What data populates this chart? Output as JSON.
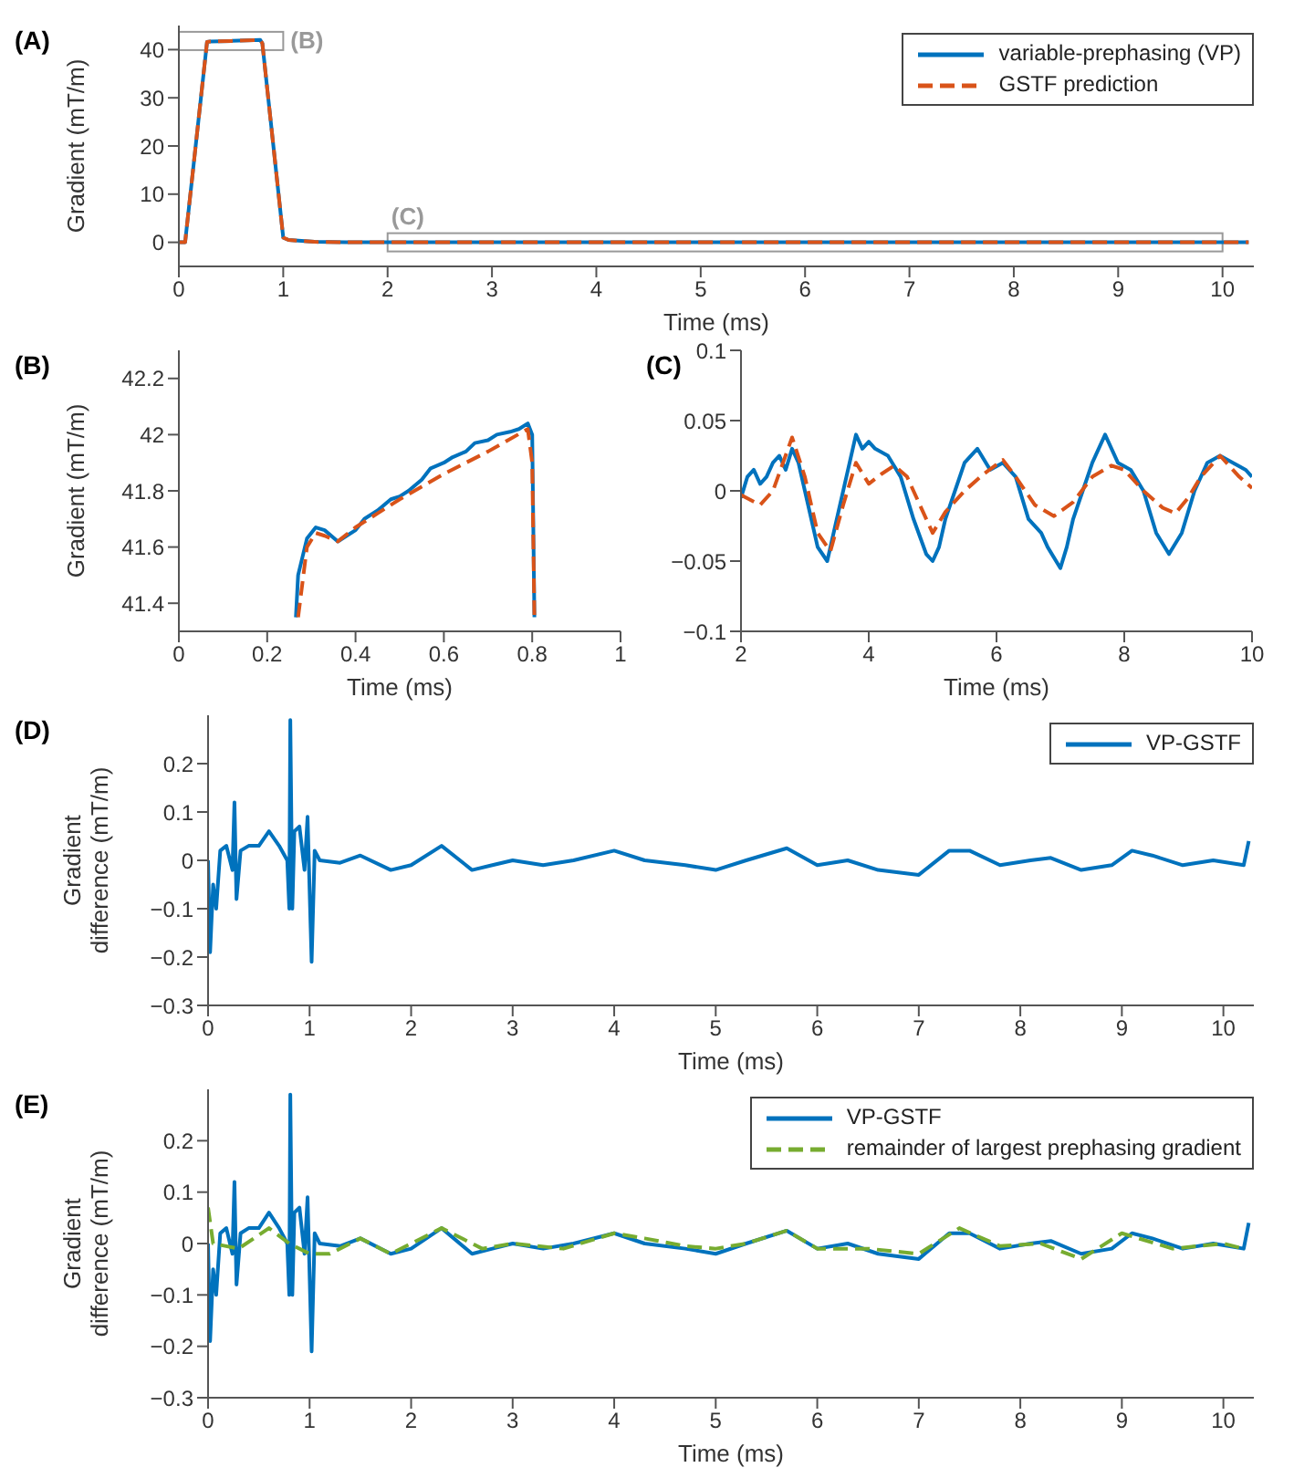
{
  "chart_data": [
    {
      "type": "line",
      "title": "(A)",
      "xlabel": "Time (ms)",
      "ylabel": "Gradient (mT/m)",
      "xlim": [
        0,
        10.3
      ],
      "xticks": [
        0,
        1,
        2,
        3,
        4,
        5,
        6,
        7,
        8,
        9,
        10
      ],
      "ylim": [
        -5,
        45
      ],
      "yticks": [
        0,
        10,
        20,
        30,
        40
      ],
      "legend": "top right",
      "annotations": [
        "(B)",
        "(C)"
      ],
      "series": [
        {
          "name": "variable-prephasing (VP)",
          "color": "#0072bd",
          "line_style": "solid",
          "x": [
            0,
            0.06,
            0.27,
            0.3,
            0.5,
            0.78,
            0.8,
            1.0,
            1.05,
            1.3,
            1.6,
            10.25
          ],
          "values": [
            0,
            0,
            41.6,
            41.7,
            41.8,
            42,
            41.3,
            1,
            0.5,
            0.1,
            0,
            0
          ]
        },
        {
          "name": "GSTF prediction",
          "color": "#d95319",
          "line_style": "dashed",
          "x": [
            0,
            0.06,
            0.27,
            0.3,
            0.5,
            0.78,
            0.8,
            1.0,
            1.05,
            1.3,
            1.6,
            10.25
          ],
          "values": [
            0,
            0,
            41.6,
            41.7,
            41.8,
            42,
            41.3,
            1,
            0.5,
            0.1,
            0,
            0
          ]
        }
      ]
    },
    {
      "type": "line",
      "title": "(B)",
      "xlabel": "Time (ms)",
      "ylabel": "Gradient (mT/m)",
      "xlim": [
        0,
        1
      ],
      "xticks": [
        0,
        0.2,
        0.4,
        0.6,
        0.8,
        1
      ],
      "ylim": [
        41.3,
        42.3
      ],
      "yticks": [
        41.4,
        41.6,
        41.8,
        42,
        42.2
      ],
      "series": [
        {
          "color": "#0072bd",
          "line_style": "solid",
          "x": [
            0.265,
            0.27,
            0.29,
            0.31,
            0.33,
            0.36,
            0.38,
            0.4,
            0.42,
            0.45,
            0.48,
            0.5,
            0.52,
            0.55,
            0.57,
            0.6,
            0.62,
            0.65,
            0.67,
            0.7,
            0.72,
            0.75,
            0.77,
            0.79,
            0.8,
            0.805
          ],
          "values": [
            41.35,
            41.5,
            41.63,
            41.67,
            41.66,
            41.62,
            41.64,
            41.66,
            41.7,
            41.73,
            41.77,
            41.78,
            41.8,
            41.84,
            41.88,
            41.9,
            41.92,
            41.94,
            41.97,
            41.98,
            42.0,
            42.01,
            42.02,
            42.04,
            42.0,
            41.35
          ]
        },
        {
          "color": "#d95319",
          "line_style": "dashed",
          "x": [
            0.27,
            0.29,
            0.31,
            0.33,
            0.36,
            0.4,
            0.45,
            0.5,
            0.6,
            0.7,
            0.79,
            0.8,
            0.805
          ],
          "values": [
            41.35,
            41.6,
            41.65,
            41.64,
            41.62,
            41.67,
            41.72,
            41.77,
            41.86,
            41.94,
            42.02,
            41.9,
            41.35
          ]
        }
      ]
    },
    {
      "type": "line",
      "title": "(C)",
      "xlabel": "Time (ms)",
      "xlim": [
        2,
        10
      ],
      "xticks": [
        2,
        4,
        6,
        8,
        10
      ],
      "ylim": [
        -0.1,
        0.1
      ],
      "yticks": [
        -0.1,
        -0.05,
        0,
        0.05,
        0.1
      ],
      "series": [
        {
          "color": "#0072bd",
          "line_style": "solid",
          "x": [
            2.0,
            2.1,
            2.2,
            2.3,
            2.4,
            2.5,
            2.6,
            2.7,
            2.8,
            2.9,
            3.0,
            3.1,
            3.2,
            3.35,
            3.5,
            3.6,
            3.7,
            3.8,
            3.9,
            4.0,
            4.1,
            4.3,
            4.5,
            4.7,
            4.9,
            5.0,
            5.1,
            5.2,
            5.35,
            5.5,
            5.7,
            5.9,
            6.1,
            6.3,
            6.5,
            6.7,
            6.8,
            7.0,
            7.1,
            7.2,
            7.35,
            7.5,
            7.7,
            7.9,
            8.1,
            8.3,
            8.5,
            8.7,
            8.9,
            9.1,
            9.3,
            9.5,
            9.7,
            9.9,
            10.0
          ],
          "values": [
            -0.005,
            0.01,
            0.015,
            0.005,
            0.01,
            0.02,
            0.025,
            0.015,
            0.03,
            0.02,
            0.0,
            -0.02,
            -0.04,
            -0.05,
            -0.02,
            0.0,
            0.02,
            0.04,
            0.03,
            0.035,
            0.03,
            0.025,
            0.01,
            -0.02,
            -0.045,
            -0.05,
            -0.04,
            -0.02,
            0.0,
            0.02,
            0.03,
            0.015,
            0.02,
            0.01,
            -0.02,
            -0.03,
            -0.04,
            -0.055,
            -0.04,
            -0.02,
            0.0,
            0.02,
            0.04,
            0.02,
            0.015,
            0.0,
            -0.03,
            -0.045,
            -0.03,
            0.0,
            0.02,
            0.025,
            0.02,
            0.015,
            0.01
          ]
        },
        {
          "color": "#d95319",
          "line_style": "dashed",
          "x": [
            2.0,
            2.3,
            2.5,
            2.8,
            3.0,
            3.2,
            3.4,
            3.6,
            3.8,
            4.0,
            4.2,
            4.4,
            4.6,
            4.8,
            5.0,
            5.2,
            5.5,
            5.8,
            6.1,
            6.3,
            6.6,
            6.9,
            7.2,
            7.5,
            7.8,
            8.0,
            8.3,
            8.6,
            8.8,
            9.0,
            9.2,
            9.5,
            9.8,
            10.0
          ],
          "values": [
            -0.003,
            -0.01,
            0.0,
            0.038,
            0.01,
            -0.03,
            -0.043,
            -0.01,
            0.02,
            0.005,
            0.012,
            0.018,
            0.01,
            -0.01,
            -0.03,
            -0.015,
            0.0,
            0.012,
            0.022,
            0.01,
            -0.01,
            -0.018,
            -0.008,
            0.01,
            0.018,
            0.015,
            0.0,
            -0.012,
            -0.016,
            -0.005,
            0.01,
            0.025,
            0.01,
            0.002
          ]
        }
      ]
    },
    {
      "type": "line",
      "title": "(D)",
      "xlabel": "Time (ms)",
      "ylabel": "Gradient difference (mT/m)",
      "xlim": [
        0,
        10.3
      ],
      "xticks": [
        0,
        1,
        2,
        3,
        4,
        5,
        6,
        7,
        8,
        9,
        10
      ],
      "ylim": [
        -0.3,
        0.3
      ],
      "yticks": [
        -0.3,
        -0.2,
        -0.1,
        0,
        0.1,
        0.2
      ],
      "legend": "top right",
      "series": [
        {
          "name": "VP-GSTF",
          "color": "#0072bd",
          "line_style": "solid",
          "x": [
            0,
            0.02,
            0.05,
            0.08,
            0.12,
            0.18,
            0.24,
            0.26,
            0.28,
            0.32,
            0.4,
            0.5,
            0.6,
            0.7,
            0.78,
            0.8,
            0.81,
            0.83,
            0.85,
            0.9,
            0.95,
            0.98,
            1.02,
            1.05,
            1.1,
            1.3,
            1.5,
            1.8,
            2.0,
            2.3,
            2.6,
            2.8,
            3.0,
            3.3,
            3.6,
            4.0,
            4.3,
            4.7,
            5.0,
            5.3,
            5.7,
            6.0,
            6.3,
            6.6,
            7.0,
            7.3,
            7.5,
            7.8,
            8.1,
            8.3,
            8.6,
            8.9,
            9.1,
            9.3,
            9.6,
            9.9,
            10.2,
            10.25
          ],
          "values": [
            0,
            -0.19,
            -0.05,
            -0.1,
            0.02,
            0.03,
            -0.02,
            0.12,
            -0.08,
            0.02,
            0.03,
            0.03,
            0.06,
            0.03,
            0.0,
            -0.1,
            0.29,
            -0.1,
            0.06,
            0.07,
            -0.02,
            0.09,
            -0.21,
            0.02,
            0.0,
            -0.005,
            0.01,
            -0.02,
            -0.01,
            0.03,
            -0.02,
            -0.01,
            0.0,
            -0.01,
            0.0,
            0.02,
            0.0,
            -0.01,
            -0.02,
            0.0,
            0.025,
            -0.01,
            0.0,
            -0.02,
            -0.03,
            0.02,
            0.02,
            -0.01,
            0.0,
            0.005,
            -0.02,
            -0.01,
            0.02,
            0.01,
            -0.01,
            0.0,
            -0.01,
            0.04
          ]
        }
      ]
    },
    {
      "type": "line",
      "title": "(E)",
      "xlabel": "Time (ms)",
      "ylabel": "Gradient difference (mT/m)",
      "xlim": [
        0,
        10.3
      ],
      "xticks": [
        0,
        1,
        2,
        3,
        4,
        5,
        6,
        7,
        8,
        9,
        10
      ],
      "ylim": [
        -0.3,
        0.3
      ],
      "yticks": [
        -0.3,
        -0.2,
        -0.1,
        0,
        0.1,
        0.2
      ],
      "legend": "top right",
      "series": [
        {
          "name": "VP-GSTF",
          "color": "#0072bd",
          "line_style": "solid",
          "x": [
            0,
            0.02,
            0.05,
            0.08,
            0.12,
            0.18,
            0.24,
            0.26,
            0.28,
            0.32,
            0.4,
            0.5,
            0.6,
            0.7,
            0.78,
            0.8,
            0.81,
            0.83,
            0.85,
            0.9,
            0.95,
            0.98,
            1.02,
            1.05,
            1.1,
            1.3,
            1.5,
            1.8,
            2.0,
            2.3,
            2.6,
            2.8,
            3.0,
            3.3,
            3.6,
            4.0,
            4.3,
            4.7,
            5.0,
            5.3,
            5.7,
            6.0,
            6.3,
            6.6,
            7.0,
            7.3,
            7.5,
            7.8,
            8.1,
            8.3,
            8.6,
            8.9,
            9.1,
            9.3,
            9.6,
            9.9,
            10.2,
            10.25
          ],
          "values": [
            0,
            -0.19,
            -0.05,
            -0.1,
            0.02,
            0.03,
            -0.02,
            0.12,
            -0.08,
            0.02,
            0.03,
            0.03,
            0.06,
            0.03,
            0.0,
            -0.1,
            0.29,
            -0.1,
            0.06,
            0.07,
            -0.02,
            0.09,
            -0.21,
            0.02,
            0.0,
            -0.005,
            0.01,
            -0.02,
            -0.01,
            0.03,
            -0.02,
            -0.01,
            0.0,
            -0.01,
            0.0,
            0.02,
            0.0,
            -0.01,
            -0.02,
            0.0,
            0.025,
            -0.01,
            0.0,
            -0.02,
            -0.03,
            0.02,
            0.02,
            -0.01,
            0.0,
            0.005,
            -0.02,
            -0.01,
            0.02,
            0.01,
            -0.01,
            0.0,
            -0.01,
            0.04
          ]
        },
        {
          "name": "remainder of largest prephasing gradient",
          "color": "#77ac30",
          "line_style": "dashed",
          "x": [
            0,
            0.05,
            0.3,
            0.6,
            0.8,
            1.0,
            1.2,
            1.5,
            1.8,
            2.3,
            2.7,
            3.0,
            3.5,
            4.0,
            4.3,
            4.7,
            5.0,
            5.3,
            5.7,
            6.0,
            6.5,
            7.0,
            7.4,
            7.8,
            8.2,
            8.6,
            9.0,
            9.5,
            10.0,
            10.2
          ],
          "values": [
            0.07,
            0.0,
            -0.01,
            0.03,
            0.0,
            -0.02,
            -0.02,
            0.01,
            -0.02,
            0.03,
            -0.01,
            0.0,
            -0.01,
            0.02,
            0.01,
            -0.005,
            -0.01,
            0.0,
            0.025,
            -0.01,
            -0.01,
            -0.02,
            0.03,
            -0.005,
            0.0,
            -0.03,
            0.02,
            -0.01,
            0.0,
            -0.01
          ]
        }
      ]
    }
  ]
}
